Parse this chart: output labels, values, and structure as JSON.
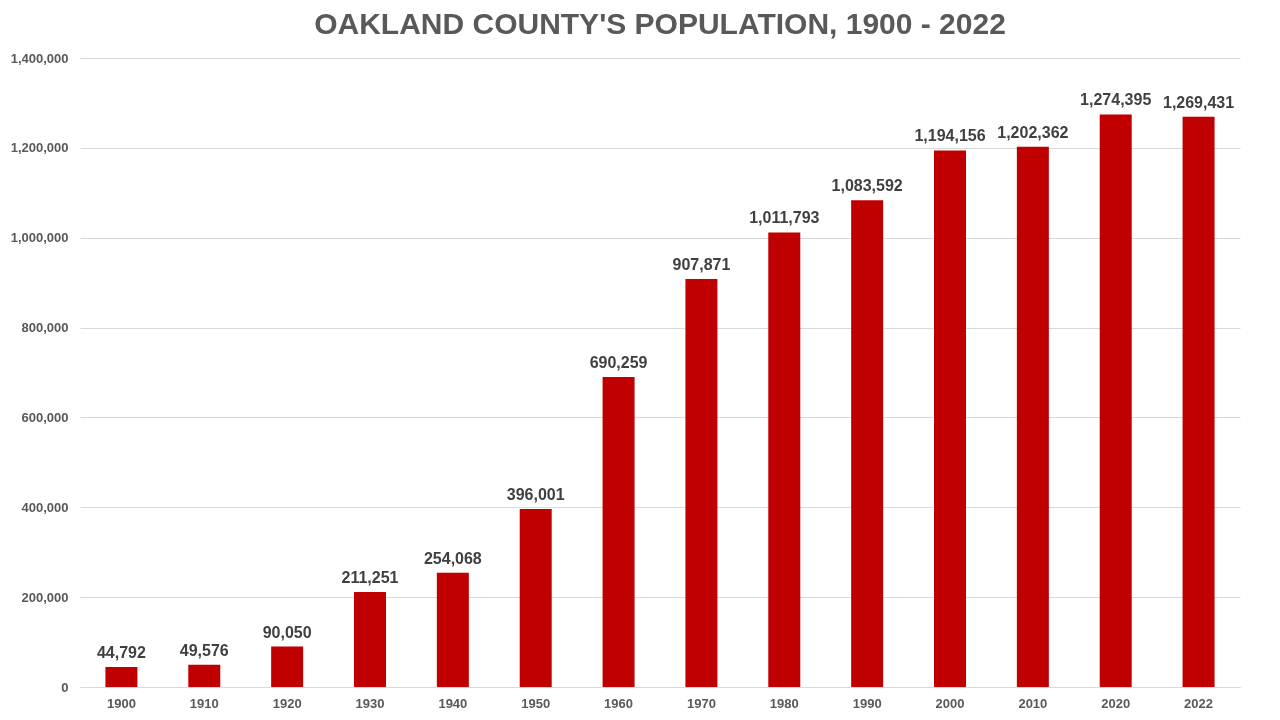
{
  "chart_data": {
    "type": "bar",
    "title": "OAKLAND COUNTY'S POPULATION, 1900 - 2022",
    "categories": [
      "1900",
      "1910",
      "1920",
      "1930",
      "1940",
      "1950",
      "1960",
      "1970",
      "1980",
      "1990",
      "2000",
      "2010",
      "2020",
      "2022"
    ],
    "values": [
      44792,
      49576,
      90050,
      211251,
      254068,
      396001,
      690259,
      907871,
      1011793,
      1083592,
      1194156,
      1202362,
      1274395,
      1269431
    ],
    "color": "#c00000",
    "ylim": [
      0,
      1400000
    ],
    "yticks": [
      {
        "value": 0,
        "label": "0"
      },
      {
        "value": 200000,
        "label": "200,000"
      },
      {
        "value": 400000,
        "label": "400,000"
      },
      {
        "value": 600000,
        "label": "600,000"
      },
      {
        "value": 800000,
        "label": "800,000"
      },
      {
        "value": 1000000,
        "label": "1,000,000"
      },
      {
        "value": 1200000,
        "label": "1,200,000"
      },
      {
        "value": 1400000,
        "label": "1,400,000"
      }
    ],
    "value_labels": [
      "44,792",
      "49,576",
      "90,050",
      "211,251",
      "254,068",
      "396,001",
      "690,259",
      "907,871",
      "1,011,793",
      "1,083,592",
      "1,194,156",
      "1,202,362",
      "1,274,395",
      "1,269,431"
    ],
    "grid": "y"
  }
}
